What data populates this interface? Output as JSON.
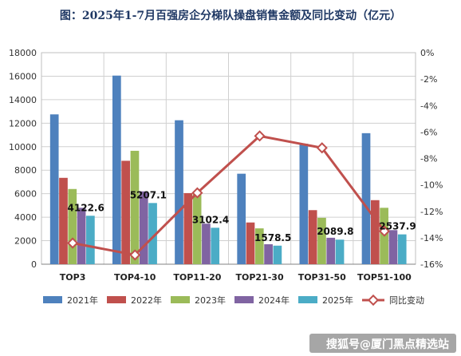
{
  "chart_data": {
    "type": "bar",
    "title": "图：2025年1-7月百强房企分梯队操盘销售金额及同比变动（亿元）",
    "categories": [
      "TOP3",
      "TOP4-10",
      "TOP11-20",
      "TOP21-30",
      "TOP31-50",
      "TOP51-100"
    ],
    "series": [
      {
        "name": "2021年",
        "color": "#4e81bd",
        "values": [
          12750,
          16050,
          12250,
          7700,
          10250,
          11150
        ]
      },
      {
        "name": "2022年",
        "color": "#c0504d",
        "values": [
          7350,
          8800,
          6050,
          3550,
          4600,
          5450
        ]
      },
      {
        "name": "2023年",
        "color": "#9bbb59",
        "values": [
          6400,
          9650,
          6050,
          3050,
          3950,
          4800
        ]
      },
      {
        "name": "2024年",
        "color": "#8064a2",
        "values": [
          4800,
          6200,
          3450,
          1700,
          2250,
          2900
        ]
      },
      {
        "name": "2025年",
        "color": "#4bacc6",
        "values": [
          4122.6,
          5207.1,
          3102.4,
          1578.5,
          2089.8,
          2537.9
        ]
      }
    ],
    "line": {
      "name": "同比变动",
      "color": "#c0504d",
      "values": [
        -14.4,
        -15.3,
        -10.6,
        -6.3,
        -7.2,
        -13.5
      ]
    },
    "data_labels": [
      "4122.6",
      "5207.1",
      "3102.4",
      "1578.5",
      "2089.8",
      "2537.9"
    ],
    "y_left": {
      "min": 0,
      "max": 18000,
      "step": 2000,
      "ticks": [
        "0",
        "2000",
        "4000",
        "6000",
        "8000",
        "10000",
        "12000",
        "14000",
        "16000",
        "18000"
      ]
    },
    "y_right": {
      "min": -16,
      "max": 0,
      "step": 2,
      "ticks": [
        "-16%",
        "-14%",
        "-12%",
        "-10%",
        "-8%",
        "-6%",
        "-4%",
        "-2%",
        "0%"
      ]
    },
    "grid": true,
    "legend_position": "bottom",
    "watermark": "搜狐号@厦门黑点精选站"
  }
}
